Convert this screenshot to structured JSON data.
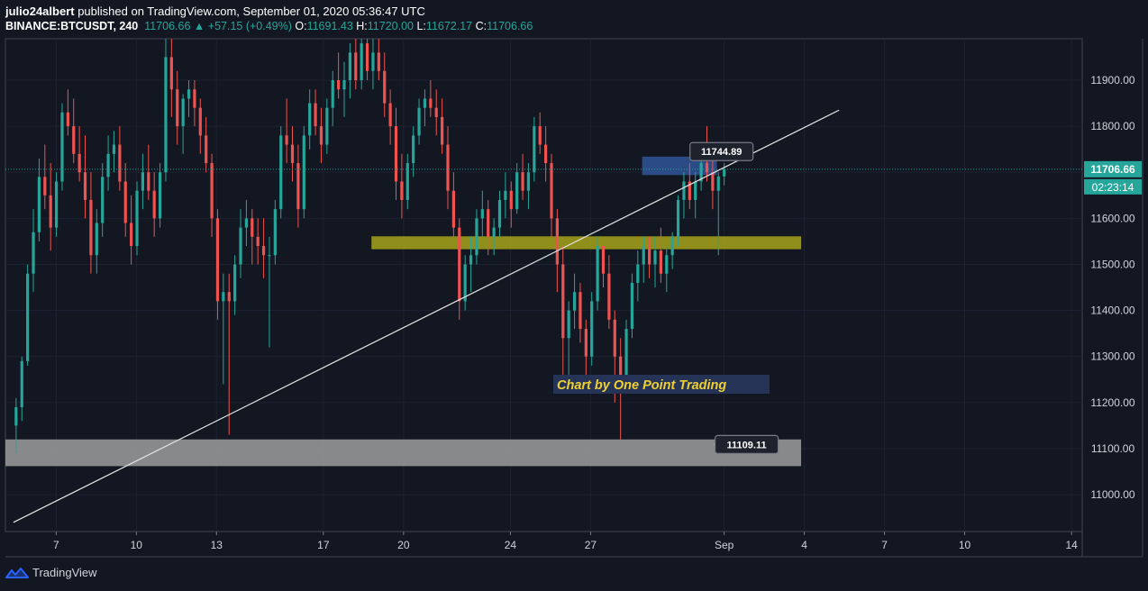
{
  "header": {
    "author": "julio24albert",
    "published_text": "published on TradingView.com, September 01, 2020 05:36:47 UTC",
    "symbol": "BINANCE:BTCUSDT, 240",
    "last": "11706.66",
    "change": "+57.15 (+0.49%)",
    "o_label": "O:",
    "o": "11691.43",
    "h_label": "H:",
    "h": "11720.00",
    "l_label": "L:",
    "l": "11672.17",
    "c_label": "C:",
    "c": "11706.66",
    "up_arrow": "▲"
  },
  "price_tag": {
    "price": "11706.66",
    "countdown": "02:23:14"
  },
  "annotations": {
    "top_label": "11744.89",
    "bottom_label": "11109.11",
    "watermark": "Chart by One Point Trading"
  },
  "footer": {
    "brand": "TradingView",
    "logo_icon": "tradingview-logo-icon"
  },
  "colors": {
    "background": "#131722",
    "up": "#26a69a",
    "down": "#ef5350",
    "zone_blue": "#2f5597",
    "zone_yellow": "#a8a51a",
    "zone_gray": "#9e9e9e"
  },
  "chart_data": {
    "type": "candlestick",
    "symbol": "BINANCE:BTCUSDT",
    "timeframe": "240",
    "ylim": [
      10920,
      11990
    ],
    "y_ticks": [
      11000,
      11100,
      11200,
      11300,
      11400,
      11500,
      11600,
      11700,
      11800,
      11900
    ],
    "y_tick_labels": [
      "11000.00",
      "11100.00",
      "11200.00",
      "11300.00",
      "11400.00",
      "11500.00",
      "11600.00",
      "11700.00",
      "11800.00",
      "11900.00"
    ],
    "x_ticks": [
      {
        "label": "7",
        "day": 7
      },
      {
        "label": "10",
        "day": 10
      },
      {
        "label": "13",
        "day": 13
      },
      {
        "label": "17",
        "day": 17
      },
      {
        "label": "20",
        "day": 20
      },
      {
        "label": "24",
        "day": 24
      },
      {
        "label": "27",
        "day": 27
      },
      {
        "label": "Sep",
        "day": 32
      },
      {
        "label": "4",
        "day": 35
      },
      {
        "label": "7",
        "day": 38
      },
      {
        "label": "10",
        "day": 41
      },
      {
        "label": "14",
        "day": 45
      }
    ],
    "xlim_days": [
      5.1,
      45.4
    ],
    "current_price": 11706.66,
    "zones": [
      {
        "name": "resistance-zone",
        "color": "#2f5597",
        "day_start": 28.93,
        "day_end": 31.73,
        "price_low": 11694,
        "price_high": 11734
      },
      {
        "name": "support-zone-yellow",
        "color": "#a8a51a",
        "day_start": 18.8,
        "day_end": 34.88,
        "price_low": 11533,
        "price_high": 11561
      },
      {
        "name": "support-zone-gray",
        "color": "#9e9e9e",
        "day_start": 5.1,
        "day_end": 34.88,
        "price_low": 11062,
        "price_high": 11120
      }
    ],
    "trendline": {
      "start": {
        "day": 5.4,
        "price": 10940
      },
      "end": {
        "day": 36.3,
        "price": 11835
      }
    },
    "price_labels": [
      {
        "text": "11744.89",
        "day": 31.9,
        "price": 11745,
        "anchor_day": 31.03,
        "anchor_price": 11753
      },
      {
        "text": "11109.11",
        "day": 32.84,
        "price": 11109,
        "anchor_day": 31.73,
        "anchor_price": 11109
      }
    ],
    "candles": [
      [
        11150,
        11210,
        11090,
        11190
      ],
      [
        11190,
        11300,
        11160,
        11290
      ],
      [
        11290,
        11500,
        11280,
        11480
      ],
      [
        11480,
        11620,
        11440,
        11570
      ],
      [
        11570,
        11730,
        11550,
        11690
      ],
      [
        11690,
        11760,
        11620,
        11650
      ],
      [
        11650,
        11720,
        11530,
        11580
      ],
      [
        11580,
        11700,
        11560,
        11680
      ],
      [
        11680,
        11850,
        11660,
        11830
      ],
      [
        11830,
        11880,
        11780,
        11800
      ],
      [
        11800,
        11860,
        11720,
        11740
      ],
      [
        11740,
        11800,
        11680,
        11700
      ],
      [
        11700,
        11780,
        11600,
        11640
      ],
      [
        11640,
        11700,
        11480,
        11520
      ],
      [
        11520,
        11620,
        11480,
        11590
      ],
      [
        11590,
        11720,
        11560,
        11690
      ],
      [
        11690,
        11780,
        11660,
        11740
      ],
      [
        11740,
        11790,
        11700,
        11760
      ],
      [
        11760,
        11800,
        11660,
        11680
      ],
      [
        11680,
        11720,
        11560,
        11590
      ],
      [
        11590,
        11650,
        11500,
        11540
      ],
      [
        11540,
        11680,
        11520,
        11660
      ],
      [
        11660,
        11740,
        11620,
        11700
      ],
      [
        11700,
        11760,
        11640,
        11660
      ],
      [
        11660,
        11700,
        11560,
        11600
      ],
      [
        11600,
        11720,
        11580,
        11700
      ],
      [
        11700,
        11990,
        11680,
        11950
      ],
      [
        11950,
        11990,
        11820,
        11880
      ],
      [
        11880,
        11920,
        11760,
        11800
      ],
      [
        11800,
        11870,
        11740,
        11860
      ],
      [
        11860,
        11900,
        11820,
        11880
      ],
      [
        11880,
        11900,
        11800,
        11840
      ],
      [
        11840,
        11860,
        11740,
        11780
      ],
      [
        11780,
        11820,
        11700,
        11720
      ],
      [
        11720,
        11740,
        11560,
        11600
      ],
      [
        11600,
        11620,
        11380,
        11420
      ],
      [
        11420,
        11480,
        11240,
        11440
      ],
      [
        11440,
        11480,
        11130,
        11420
      ],
      [
        11420,
        11520,
        11390,
        11500
      ],
      [
        11500,
        11620,
        11470,
        11580
      ],
      [
        11580,
        11640,
        11540,
        11600
      ],
      [
        11600,
        11620,
        11500,
        11560
      ],
      [
        11560,
        11600,
        11500,
        11540
      ],
      [
        11540,
        11600,
        11470,
        11520
      ],
      [
        11520,
        11560,
        11320,
        11520
      ],
      [
        11520,
        11640,
        11500,
        11620
      ],
      [
        11620,
        11800,
        11600,
        11780
      ],
      [
        11780,
        11860,
        11720,
        11760
      ],
      [
        11760,
        11800,
        11680,
        11720
      ],
      [
        11720,
        11760,
        11580,
        11620
      ],
      [
        11620,
        11800,
        11600,
        11780
      ],
      [
        11780,
        11880,
        11750,
        11850
      ],
      [
        11850,
        11880,
        11780,
        11800
      ],
      [
        11800,
        11840,
        11720,
        11760
      ],
      [
        11760,
        11860,
        11740,
        11840
      ],
      [
        11840,
        11920,
        11800,
        11900
      ],
      [
        11900,
        11960,
        11860,
        11880
      ],
      [
        11880,
        11940,
        11820,
        11900
      ],
      [
        11900,
        11980,
        11860,
        11960
      ],
      [
        11960,
        11990,
        11880,
        11900
      ],
      [
        11900,
        11990,
        11880,
        11980
      ],
      [
        11980,
        11990,
        11900,
        11920
      ],
      [
        11920,
        11990,
        11880,
        11960
      ],
      [
        11960,
        11990,
        11900,
        11920
      ],
      [
        11920,
        11960,
        11820,
        11850
      ],
      [
        11850,
        11880,
        11760,
        11800
      ],
      [
        11800,
        11840,
        11640,
        11680
      ],
      [
        11680,
        11740,
        11600,
        11640
      ],
      [
        11640,
        11740,
        11620,
        11720
      ],
      [
        11720,
        11800,
        11690,
        11780
      ],
      [
        11780,
        11860,
        11760,
        11840
      ],
      [
        11840,
        11880,
        11800,
        11860
      ],
      [
        11860,
        11900,
        11820,
        11840
      ],
      [
        11840,
        11880,
        11780,
        11820
      ],
      [
        11820,
        11860,
        11740,
        11760
      ],
      [
        11760,
        11800,
        11620,
        11660
      ],
      [
        11660,
        11700,
        11560,
        11580
      ],
      [
        11580,
        11600,
        11380,
        11420
      ],
      [
        11420,
        11520,
        11400,
        11500
      ],
      [
        11500,
        11560,
        11440,
        11520
      ],
      [
        11520,
        11620,
        11500,
        11600
      ],
      [
        11600,
        11660,
        11560,
        11620
      ],
      [
        11620,
        11640,
        11520,
        11560
      ],
      [
        11560,
        11600,
        11520,
        11580
      ],
      [
        11580,
        11660,
        11560,
        11640
      ],
      [
        11640,
        11700,
        11600,
        11660
      ],
      [
        11660,
        11680,
        11580,
        11620
      ],
      [
        11620,
        11720,
        11610,
        11700
      ],
      [
        11700,
        11740,
        11640,
        11660
      ],
      [
        11660,
        11720,
        11620,
        11700
      ],
      [
        11700,
        11820,
        11680,
        11800
      ],
      [
        11800,
        11830,
        11740,
        11760
      ],
      [
        11760,
        11800,
        11680,
        11720
      ],
      [
        11720,
        11740,
        11560,
        11600
      ],
      [
        11600,
        11620,
        11440,
        11500
      ],
      [
        11500,
        11540,
        11240,
        11340
      ],
      [
        11340,
        11420,
        11220,
        11400
      ],
      [
        11400,
        11480,
        11360,
        11440
      ],
      [
        11440,
        11460,
        11330,
        11360
      ],
      [
        11360,
        11380,
        11230,
        11300
      ],
      [
        11300,
        11440,
        11280,
        11420
      ],
      [
        11420,
        11560,
        11400,
        11540
      ],
      [
        11540,
        11560,
        11450,
        11480
      ],
      [
        11480,
        11520,
        11360,
        11380
      ],
      [
        11380,
        11400,
        11200,
        11300
      ],
      [
        11300,
        11340,
        11120,
        11260
      ],
      [
        11260,
        11380,
        11240,
        11360
      ],
      [
        11360,
        11480,
        11340,
        11460
      ],
      [
        11460,
        11530,
        11420,
        11500
      ],
      [
        11500,
        11560,
        11460,
        11540
      ],
      [
        11540,
        11560,
        11470,
        11500
      ],
      [
        11500,
        11560,
        11450,
        11530
      ],
      [
        11530,
        11580,
        11460,
        11480
      ],
      [
        11480,
        11540,
        11440,
        11520
      ],
      [
        11520,
        11570,
        11490,
        11560
      ],
      [
        11560,
        11650,
        11540,
        11640
      ],
      [
        11640,
        11700,
        11600,
        11680
      ],
      [
        11680,
        11720,
        11620,
        11640
      ],
      [
        11640,
        11700,
        11600,
        11680
      ],
      [
        11680,
        11740,
        11660,
        11720
      ],
      [
        11720,
        11800,
        11680,
        11700
      ],
      [
        11700,
        11760,
        11620,
        11660
      ],
      [
        11660,
        11700,
        11520,
        11691
      ],
      [
        11691,
        11720,
        11672,
        11707
      ]
    ]
  }
}
